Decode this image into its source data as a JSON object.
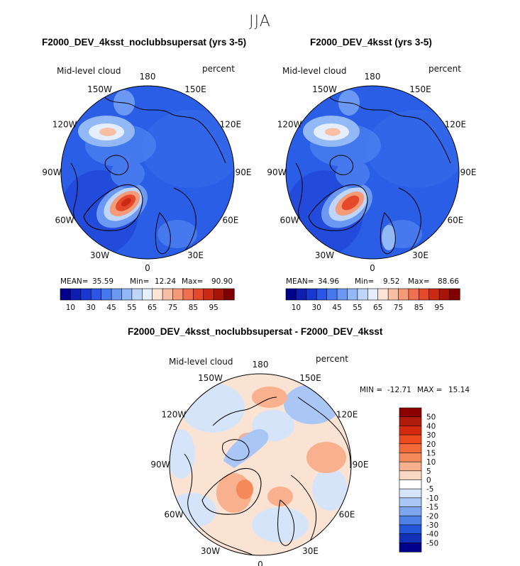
{
  "title": "JJA",
  "chart_data": [
    {
      "type": "heatmap",
      "projection": "north-polar-stereographic",
      "title": "F2000_DEV_4ksst_noclubbsupersat (yrs 3-5)",
      "variable": "Mid-level cloud",
      "units": "percent",
      "lon_labels": [
        "180",
        "150E",
        "120E",
        "90E",
        "60E",
        "30E",
        "0",
        "30W",
        "60W",
        "90W",
        "120W",
        "150W"
      ],
      "stats": {
        "mean_label": "MEAN=",
        "mean": "35.59",
        "min_label": "Min=",
        "min": "12.24",
        "max_label": "Max=",
        "max": "90.90"
      },
      "colorbar": {
        "orientation": "horizontal",
        "tick_labels": [
          "10",
          "30",
          "45",
          "55",
          "65",
          "75",
          "85",
          "95"
        ],
        "colors": [
          "#00008b",
          "#0d1eb0",
          "#1838d0",
          "#2a55e5",
          "#4678ee",
          "#6a98f3",
          "#93b8f6",
          "#bfd5f9",
          "#e5eefc",
          "#fde4d6",
          "#f9bfa5",
          "#f59a78",
          "#ef7050",
          "#e44a2a",
          "#cc2a14",
          "#a8140a",
          "#800000"
        ]
      }
    },
    {
      "type": "heatmap",
      "projection": "north-polar-stereographic",
      "title": "F2000_DEV_4ksst (yrs 3-5)",
      "variable": "Mid-level cloud",
      "units": "percent",
      "lon_labels": [
        "180",
        "150E",
        "120E",
        "90E",
        "60E",
        "30E",
        "0",
        "30W",
        "60W",
        "90W",
        "120W",
        "150W"
      ],
      "stats": {
        "mean_label": "MEAN=",
        "mean": "34.96",
        "min_label": "Min=",
        "min": "9.52",
        "max_label": "Max=",
        "max": "88.66"
      },
      "colorbar": {
        "orientation": "horizontal",
        "tick_labels": [
          "10",
          "30",
          "45",
          "55",
          "65",
          "75",
          "85",
          "95"
        ],
        "colors": [
          "#00008b",
          "#0d1eb0",
          "#1838d0",
          "#2a55e5",
          "#4678ee",
          "#6a98f3",
          "#93b8f6",
          "#bfd5f9",
          "#e5eefc",
          "#fde4d6",
          "#f9bfa5",
          "#f59a78",
          "#ef7050",
          "#e44a2a",
          "#cc2a14",
          "#a8140a",
          "#800000"
        ]
      }
    },
    {
      "type": "heatmap",
      "projection": "north-polar-stereographic",
      "title": "F2000_DEV_4ksst_noclubbsupersat - F2000_DEV_4ksst",
      "variable": "Mid-level cloud",
      "units": "percent",
      "lon_labels": [
        "180",
        "150E",
        "120E",
        "90E",
        "60E",
        "30E",
        "0",
        "30W",
        "60W",
        "90W",
        "120W",
        "150W"
      ],
      "stats": {
        "min_label": "MIN =",
        "min": "-12.71",
        "max_label": "MAX =",
        "max": "15.14"
      },
      "colorbar": {
        "orientation": "vertical",
        "tick_labels": [
          "50",
          "40",
          "30",
          "20",
          "15",
          "10",
          "5",
          "0",
          "-5",
          "-10",
          "-15",
          "-20",
          "-30",
          "-40",
          "-50"
        ],
        "colors": [
          "#8b0000",
          "#b01a0a",
          "#d42a10",
          "#ee4a20",
          "#f26a3a",
          "#f48a5a",
          "#f8b08e",
          "#fbd8c4",
          "#ffffff",
          "#d6e4fa",
          "#aac6f4",
          "#7ea6ee",
          "#4e80e6",
          "#2255d8",
          "#1030b8",
          "#00008b"
        ]
      }
    }
  ]
}
